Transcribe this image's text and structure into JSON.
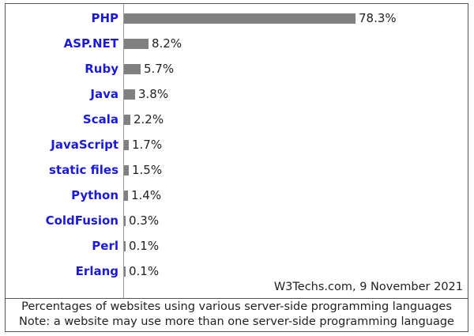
{
  "chart_data": {
    "type": "bar",
    "orientation": "horizontal",
    "title": "",
    "categories": [
      "PHP",
      "ASP.NET",
      "Ruby",
      "Java",
      "Scala",
      "JavaScript",
      "static files",
      "Python",
      "ColdFusion",
      "Perl",
      "Erlang"
    ],
    "values": [
      78.3,
      8.2,
      5.7,
      3.8,
      2.2,
      1.7,
      1.5,
      1.4,
      0.3,
      0.1,
      0.1
    ],
    "value_labels": [
      "78.3%",
      "8.2%",
      "5.7%",
      "3.8%",
      "2.2%",
      "1.7%",
      "1.5%",
      "1.4%",
      "0.3%",
      "0.1%",
      "0.1%"
    ],
    "xlabel": "",
    "ylabel": "",
    "unit": "%",
    "grid": false,
    "legend": null,
    "source": "W3Techs.com, 9 November 2021",
    "caption_lines": [
      "Percentages of websites using various server-side programming languages",
      "Note: a website may use more than one server-side programming language"
    ]
  },
  "colors": {
    "bar": "#808080",
    "label": "#1a1ad8",
    "text": "#222222",
    "border": "#555555"
  }
}
